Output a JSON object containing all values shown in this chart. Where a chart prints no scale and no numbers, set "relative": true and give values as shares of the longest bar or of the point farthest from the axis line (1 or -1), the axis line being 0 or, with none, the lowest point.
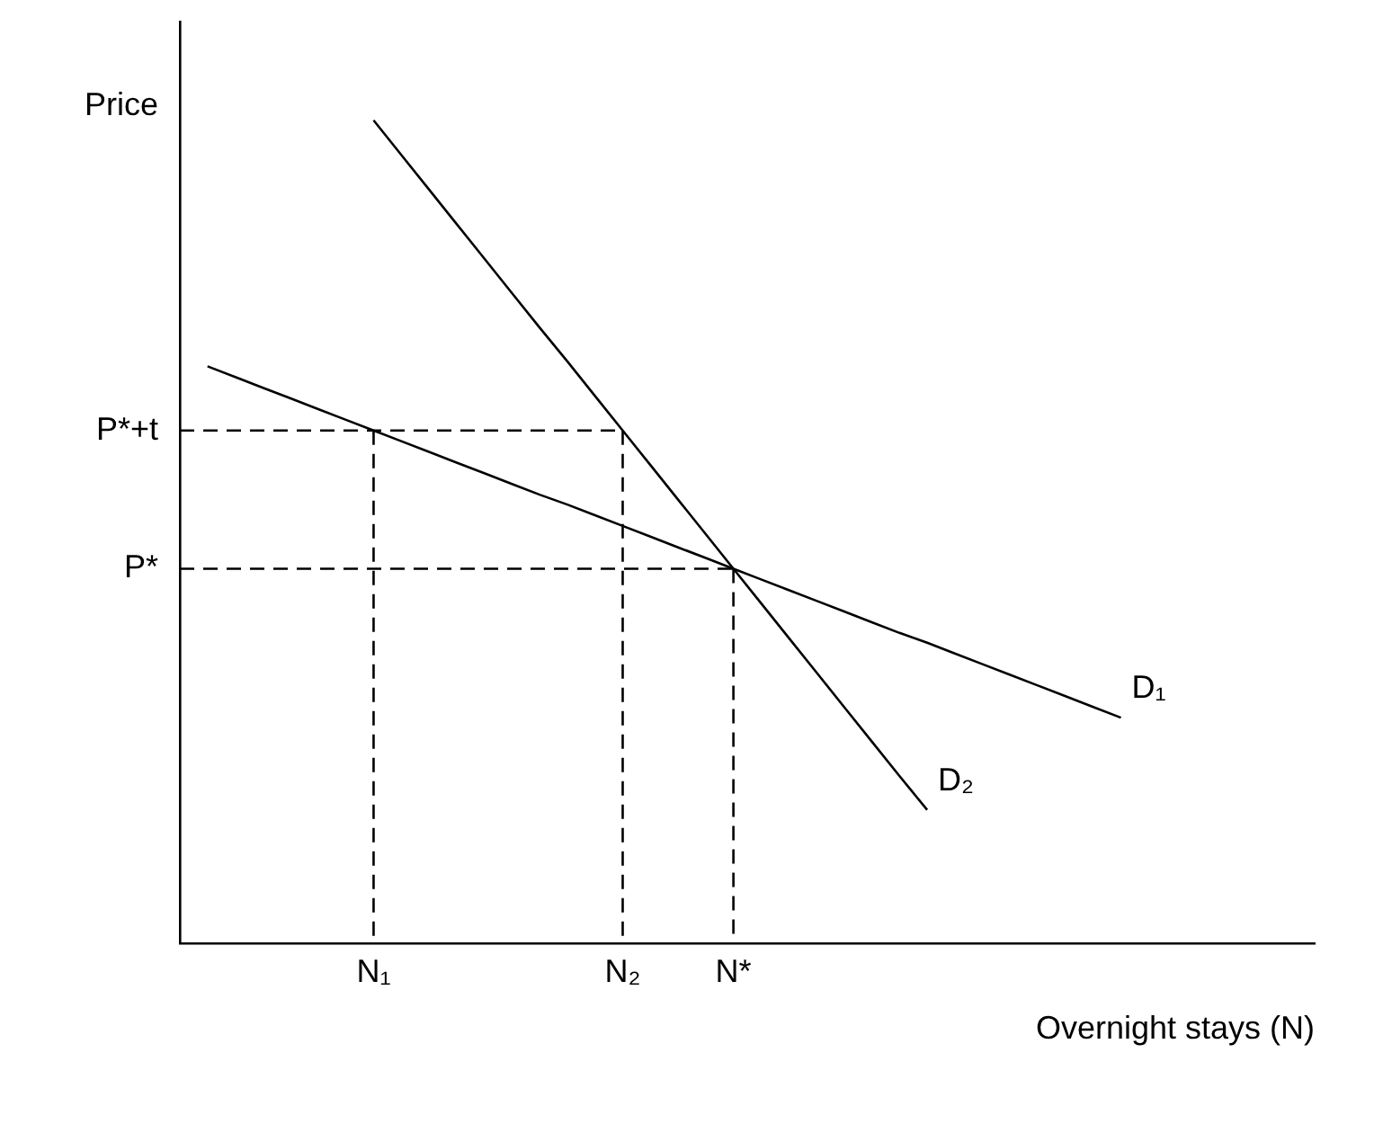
{
  "chart_data": {
    "type": "line",
    "relative": true,
    "xlabel": "Overnight stays (N)",
    "ylabel": "Price",
    "categories": [
      null,
      null,
      null,
      null,
      null,
      null,
      null,
      "N₁",
      null,
      null,
      null,
      null,
      null,
      null,
      null,
      null,
      "N₂",
      null,
      null,
      null,
      "N*",
      null,
      null,
      null,
      null,
      null,
      null,
      null,
      null,
      null,
      null,
      null,
      null,
      null,
      null,
      null,
      null,
      null,
      null,
      null,
      null,
      null
    ],
    "marker": "none",
    "line_style": "solid",
    "legend": false,
    "grid": false,
    "series": [
      {
        "name": "D₁",
        "color": "#000000",
        "values": [
          null,
          0.701,
          0.688,
          0.675,
          0.662,
          0.649,
          0.636,
          0.623,
          0.61,
          0.597,
          0.584,
          0.571,
          0.558,
          0.545,
          0.533,
          0.52,
          0.507,
          0.494,
          0.481,
          0.468,
          0.455,
          0.442,
          0.429,
          0.416,
          0.403,
          0.39,
          0.377,
          0.365,
          0.352,
          0.339,
          0.326,
          0.313,
          0.3,
          0.287,
          0.274,
          null,
          null,
          null,
          null,
          null,
          null,
          null
        ]
      },
      {
        "name": "D₂",
        "color": "#000000",
        "values": [
          null,
          null,
          null,
          null,
          null,
          null,
          null,
          1.0,
          0.958,
          0.916,
          0.874,
          0.832,
          0.79,
          0.748,
          0.707,
          0.665,
          0.623,
          0.581,
          0.539,
          0.497,
          0.455,
          0.413,
          0.371,
          0.329,
          0.287,
          0.245,
          0.203,
          0.162,
          null,
          null,
          null,
          null,
          null,
          null,
          null,
          null,
          null,
          null,
          null,
          null,
          null,
          null
        ]
      },
      {
        "name": "P*+t",
        "color": "#000000",
        "line_style": "dashed",
        "values": [
          0.623,
          0.623,
          0.623,
          0.623,
          0.623,
          0.623,
          0.623,
          0.623,
          0.623,
          0.623,
          0.623,
          0.623,
          0.623,
          0.623,
          0.623,
          0.623,
          0.623,
          null,
          null,
          null,
          null,
          null,
          null,
          null,
          null,
          null,
          null,
          null,
          null,
          null,
          null,
          null,
          null,
          null,
          null,
          null,
          null,
          null,
          null,
          null,
          null,
          null
        ]
      },
      {
        "name": "P*",
        "color": "#000000",
        "line_style": "dashed",
        "values": [
          0.455,
          0.455,
          0.455,
          0.455,
          0.455,
          0.455,
          0.455,
          0.455,
          0.455,
          0.455,
          0.455,
          0.455,
          0.455,
          0.455,
          0.455,
          0.455,
          0.455,
          0.455,
          0.455,
          0.455,
          0.455,
          null,
          null,
          null,
          null,
          null,
          null,
          null,
          null,
          null,
          null,
          null,
          null,
          null,
          null,
          null,
          null,
          null,
          null,
          null,
          null,
          null
        ]
      }
    ],
    "ref_lines": [
      {
        "axis": "x",
        "value": "N₁",
        "color": "#000000",
        "line_style": "dashed"
      },
      {
        "axis": "x",
        "value": "N₂",
        "color": "#000000",
        "line_style": "dashed"
      },
      {
        "axis": "x",
        "value": "N*",
        "color": "#000000",
        "line_style": "dashed"
      }
    ]
  }
}
